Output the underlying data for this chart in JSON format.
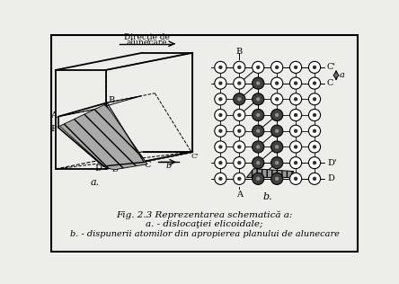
{
  "fig_width": 4.44,
  "fig_height": 3.16,
  "dpi": 100,
  "bg_color": "#ededea",
  "caption_line1": "Fig. 2.3 Reprezentarea schematică a:",
  "caption_line2": "a. - dislocaţiei elicoidale;",
  "caption_line3": "b. - dispunerii atomilor din apropierea planului de alunecare",
  "label_a": "a.",
  "label_b": "b.",
  "direction_label_1": "Direcţie de",
  "direction_label_2": "alunecare"
}
